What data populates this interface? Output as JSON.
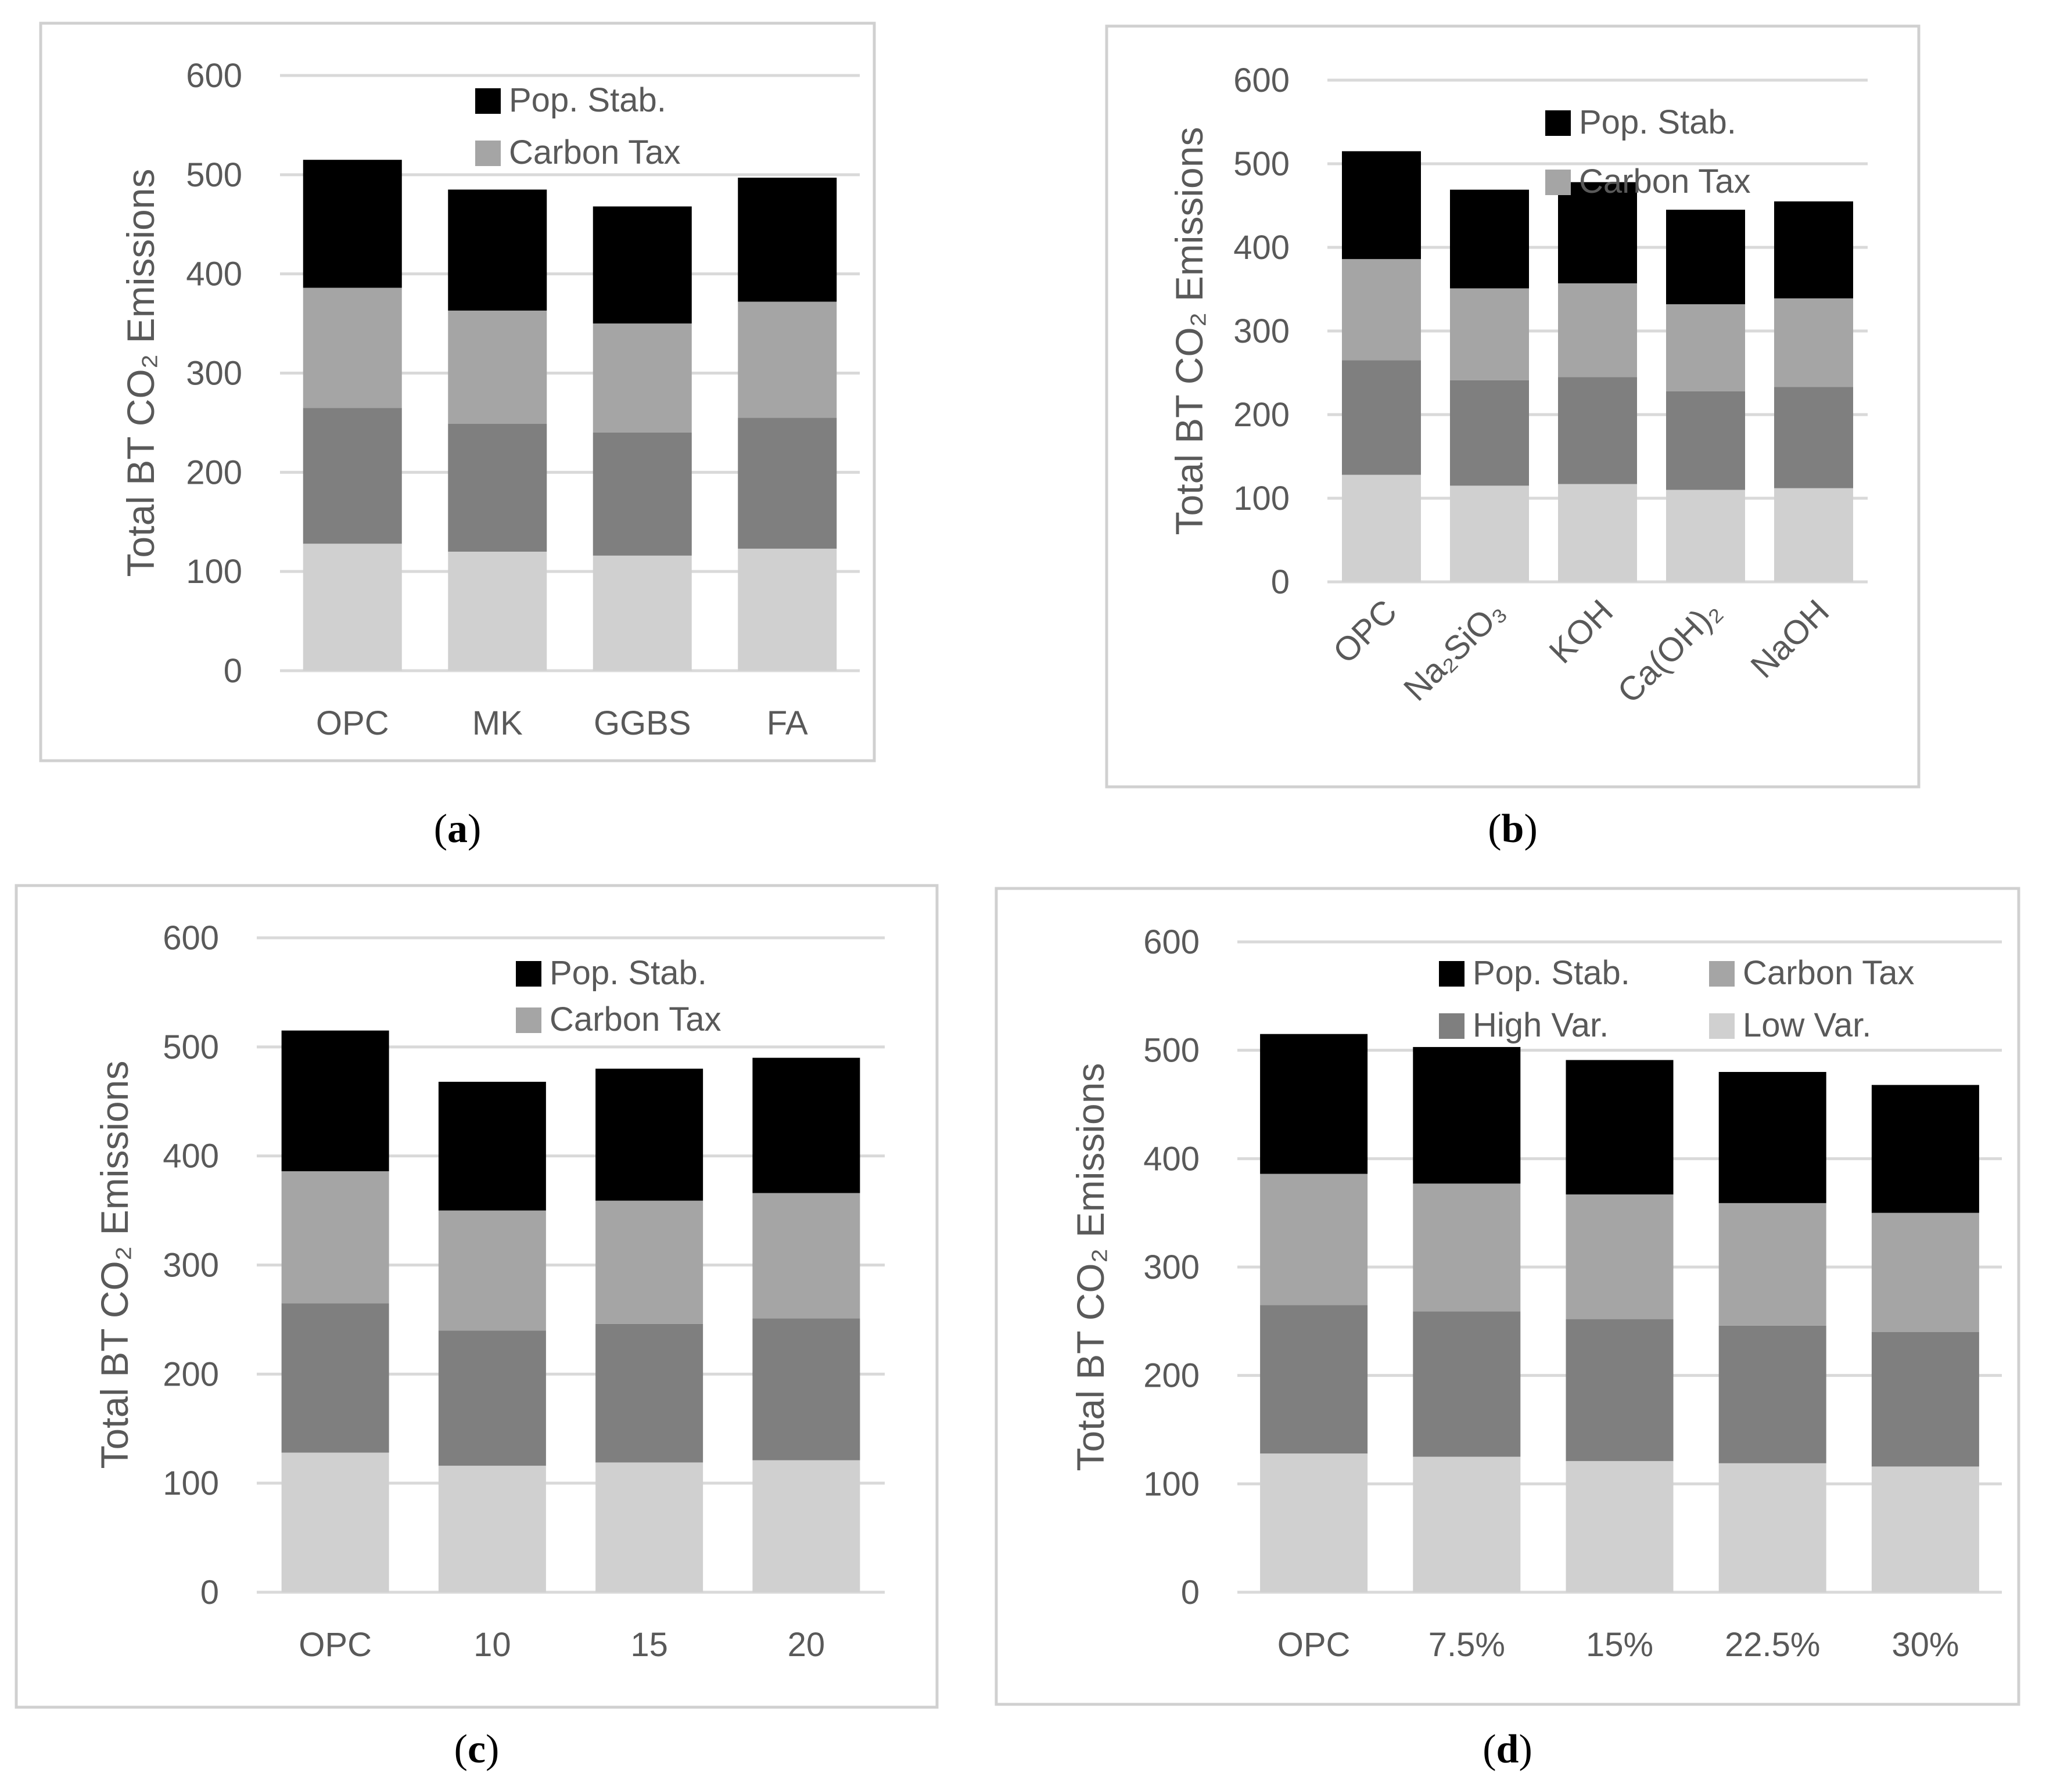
{
  "colors": {
    "Pop. Stab.": "#000000",
    "Carbon Tax": "#a5a5a5",
    "High Var.": "#7f7f7f",
    "Low Var.": "#d0d0d0"
  },
  "chart_data": [
    {
      "panel": "a",
      "type": "bar",
      "stacked": true,
      "ylabel": "Total BT CO₂ Emissions",
      "ylim": [
        0,
        600
      ],
      "yticks": [
        0,
        100,
        200,
        300,
        400,
        500,
        600
      ],
      "categories": [
        "OPC",
        "MK",
        "GGBS",
        "FA"
      ],
      "series": [
        {
          "name": "Low Var.",
          "values": [
            128,
            120,
            116,
            123
          ]
        },
        {
          "name": "High Var.",
          "values": [
            137,
            129,
            124,
            132
          ]
        },
        {
          "name": "Carbon Tax",
          "values": [
            121,
            114,
            110,
            117
          ]
        },
        {
          "name": "Pop. Stab.",
          "values": [
            129,
            122,
            118,
            125
          ]
        }
      ],
      "legend": [
        "Pop. Stab.",
        "Carbon Tax"
      ],
      "caption_open": "(",
      "caption_letter": "a",
      "caption_close": ")"
    },
    {
      "panel": "b",
      "type": "bar",
      "stacked": true,
      "ylabel": "Total BT CO₂ Emissions",
      "ylim": [
        0,
        600
      ],
      "yticks": [
        0,
        100,
        200,
        300,
        400,
        500,
        600
      ],
      "categories": [
        "OPC",
        "Na₂SiO₃",
        "KOH",
        "Ca(OH)₂",
        "NaOH"
      ],
      "series": [
        {
          "name": "Low Var.",
          "values": [
            128,
            115,
            117,
            110,
            112
          ]
        },
        {
          "name": "High Var.",
          "values": [
            137,
            126,
            128,
            118,
            121
          ]
        },
        {
          "name": "Carbon Tax",
          "values": [
            121,
            110,
            112,
            104,
            106
          ]
        },
        {
          "name": "Pop. Stab.",
          "values": [
            129,
            118,
            121,
            113,
            116
          ]
        }
      ],
      "legend": [
        "Pop. Stab.",
        "Carbon Tax"
      ],
      "caption_open": "(",
      "caption_letter": "b",
      "caption_close": ")"
    },
    {
      "panel": "c",
      "type": "bar",
      "stacked": true,
      "ylabel": "Total BT CO₂ Emissions",
      "ylim": [
        0,
        600
      ],
      "yticks": [
        0,
        100,
        200,
        300,
        400,
        500,
        600
      ],
      "categories": [
        "OPC",
        "10",
        "15",
        "20"
      ],
      "series": [
        {
          "name": "Low Var.",
          "values": [
            128,
            116,
            119,
            121
          ]
        },
        {
          "name": "High Var.",
          "values": [
            137,
            124,
            127,
            130
          ]
        },
        {
          "name": "Carbon Tax",
          "values": [
            121,
            110,
            113,
            115
          ]
        },
        {
          "name": "Pop. Stab.",
          "values": [
            129,
            118,
            121,
            124
          ]
        }
      ],
      "legend": [
        "Pop. Stab.",
        "Carbon Tax"
      ],
      "caption_open": "(",
      "caption_letter": "c",
      "caption_close": ")"
    },
    {
      "panel": "d",
      "type": "bar",
      "stacked": true,
      "ylabel": "Total BT CO₂ Emissions",
      "ylim": [
        0,
        600
      ],
      "yticks": [
        0,
        100,
        200,
        300,
        400,
        500,
        600
      ],
      "categories": [
        "OPC",
        "7.5%",
        "15%",
        "22.5%",
        "30%"
      ],
      "series": [
        {
          "name": "Low Var.",
          "values": [
            128,
            125,
            121,
            119,
            116
          ]
        },
        {
          "name": "High Var.",
          "values": [
            137,
            134,
            131,
            127,
            124
          ]
        },
        {
          "name": "Carbon Tax",
          "values": [
            121,
            118,
            115,
            113,
            110
          ]
        },
        {
          "name": "Pop. Stab.",
          "values": [
            129,
            126,
            124,
            121,
            118
          ]
        }
      ],
      "legend": [
        "Pop. Stab.",
        "Carbon Tax",
        "High Var.",
        "Low Var."
      ],
      "caption_open": "(",
      "caption_letter": "d",
      "caption_close": ")"
    }
  ]
}
